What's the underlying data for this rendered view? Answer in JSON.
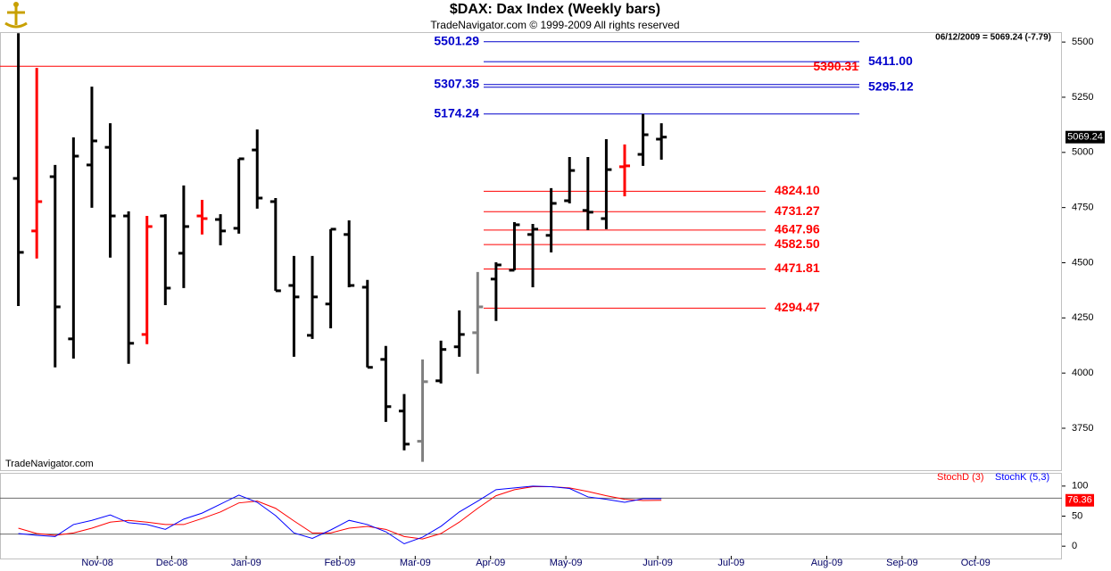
{
  "chart_data": {
    "type": "ohlc",
    "title": "$DAX:  Dax Index  (Weekly bars)",
    "subtitle": "TradeNavigator.com © 1999-2009 All rights reserved",
    "info": "06/12/2009 = 5069.24 (-7.79)",
    "watermark": "TradeNavigator.com",
    "open": [
      4882,
      4644,
      4890,
      4155,
      4943,
      5023,
      4712,
      4175,
      4712,
      4543,
      4712,
      4696,
      4656,
      5011,
      4777,
      4397,
      4171,
      4313,
      4628,
      4389,
      4062,
      3828,
      3691,
      3965,
      4119,
      4183,
      4426,
      4466,
      4628,
      4624,
      4781,
      4737,
      4700,
      4935,
      4991,
      5060
    ],
    "high": [
      5540,
      5383,
      4943,
      5068,
      5298,
      5132,
      4733,
      4712,
      4720,
      4850,
      4785,
      4720,
      4971,
      5104,
      4793,
      4531,
      4531,
      4652,
      4692,
      4422,
      4123,
      3905,
      4062,
      4147,
      4284,
      4458,
      4502,
      4684,
      4676,
      4838,
      4979,
      4979,
      5060,
      5036,
      5174.24,
      5132
    ],
    "low": [
      4304,
      4519,
      4026,
      4066,
      4749,
      4523,
      4042,
      4131,
      4308,
      4385,
      4628,
      4579,
      4632,
      4745,
      4373,
      4074,
      4155,
      4203,
      4389,
      4026,
      3779,
      3650,
      3598,
      3953,
      4074,
      3997,
      4236,
      4466,
      4389,
      4547,
      4769,
      4648,
      4652,
      4801,
      4939,
      4967
    ],
    "close": [
      4547,
      4777,
      4300,
      4983,
      5052,
      4712,
      4135,
      4664,
      4385,
      4664,
      4700,
      4644,
      4971,
      4793,
      4373,
      4345,
      4345,
      4652,
      4397,
      4026,
      3848,
      3678,
      3961,
      4107,
      4175,
      4300,
      4490,
      4672,
      4652,
      4769,
      4918,
      4729,
      4922,
      4939,
      5080,
      5069.24
    ],
    "bar_colors": [
      "#000000",
      "#ff0000",
      "#000000",
      "#000000",
      "#000000",
      "#000000",
      "#000000",
      "#ff0000",
      "#000000",
      "#000000",
      "#ff0000",
      "#000000",
      "#000000",
      "#000000",
      "#000000",
      "#000000",
      "#000000",
      "#000000",
      "#000000",
      "#000000",
      "#000000",
      "#000000",
      "#808080",
      "#000000",
      "#000000",
      "#808080",
      "#000000",
      "#000000",
      "#000000",
      "#000000",
      "#000000",
      "#000000",
      "#000000",
      "#ff0000",
      "#000000",
      "#000000"
    ],
    "ylim": [
      3560,
      5545
    ],
    "yticks": [
      3750,
      4000,
      4250,
      4500,
      4750,
      5000,
      5250,
      5500
    ],
    "xlim": [
      -1,
      56.8
    ],
    "xticks": [
      {
        "value": 4.3,
        "label": "Nov-08"
      },
      {
        "value": 8.35,
        "label": "Dec-08"
      },
      {
        "value": 12.4,
        "label": "Jan-09"
      },
      {
        "value": 17.5,
        "label": "Feb-09"
      },
      {
        "value": 21.6,
        "label": "Mar-09"
      },
      {
        "value": 25.7,
        "label": "Apr-09"
      },
      {
        "value": 29.8,
        "label": "May-09"
      },
      {
        "value": 34.8,
        "label": "Jun-09"
      },
      {
        "value": 38.8,
        "label": "Jul-09"
      },
      {
        "value": 44.0,
        "label": "Aug-09"
      },
      {
        "value": 48.1,
        "label": "Sep-09"
      },
      {
        "value": 52.1,
        "label": "Oct-09"
      }
    ],
    "levels": [
      {
        "value": 5501.29,
        "label": "5501.29",
        "color": "#0000cc",
        "side": "left"
      },
      {
        "value": 5411,
        "label": "5411.00",
        "color": "#0000cc",
        "side": "right"
      },
      {
        "value": 5390.31,
        "label": "5390.31",
        "color": "#ff0000",
        "side": "end"
      },
      {
        "value": 5307.35,
        "label": "5307.35",
        "color": "#0000cc",
        "side": "left"
      },
      {
        "value": 5295.12,
        "label": "5295.12",
        "color": "#0000cc",
        "side": "right"
      },
      {
        "value": 5174.24,
        "label": "5174.24",
        "color": "#0000cc",
        "side": "left"
      },
      {
        "value": 4824.1,
        "label": "4824.10",
        "color": "#ff0000",
        "side": "inner"
      },
      {
        "value": 4731.27,
        "label": "4731.27",
        "color": "#ff0000",
        "side": "inner"
      },
      {
        "value": 4647.96,
        "label": "4647.96",
        "color": "#ff0000",
        "side": "inner"
      },
      {
        "value": 4582.5,
        "label": "4582.50",
        "color": "#ff0000",
        "side": "inner"
      },
      {
        "value": 4471.81,
        "label": "4471.81",
        "color": "#ff0000",
        "side": "inner"
      },
      {
        "value": 4294.47,
        "label": "4294.47",
        "color": "#ff0000",
        "side": "inner"
      }
    ],
    "stoch": {
      "ylim": [
        -22,
        122
      ],
      "yticks": [
        0,
        50,
        100
      ],
      "levels": [
        20,
        80
      ],
      "series": [
        {
          "name": "StochD (3)",
          "color": "#ff0000",
          "values": [
            30,
            21,
            18,
            22,
            30,
            40,
            43,
            40,
            36,
            36,
            46,
            57,
            72,
            75,
            63,
            42,
            22,
            22,
            30,
            33,
            28,
            16,
            12,
            21,
            40,
            63,
            84,
            94,
            99,
            99,
            97,
            91,
            84,
            78,
            76,
            76.36
          ]
        },
        {
          "name": "StochK (5,3)",
          "color": "#0000ff",
          "values": [
            21,
            18,
            16,
            36,
            43,
            52,
            39,
            36,
            28,
            45,
            55,
            70,
            85,
            73,
            51,
            22,
            13,
            27,
            43,
            36,
            24,
            4,
            15,
            33,
            57,
            75,
            94,
            97,
            100,
            99,
            96,
            82,
            78,
            73,
            79,
            79
          ]
        }
      ]
    }
  }
}
